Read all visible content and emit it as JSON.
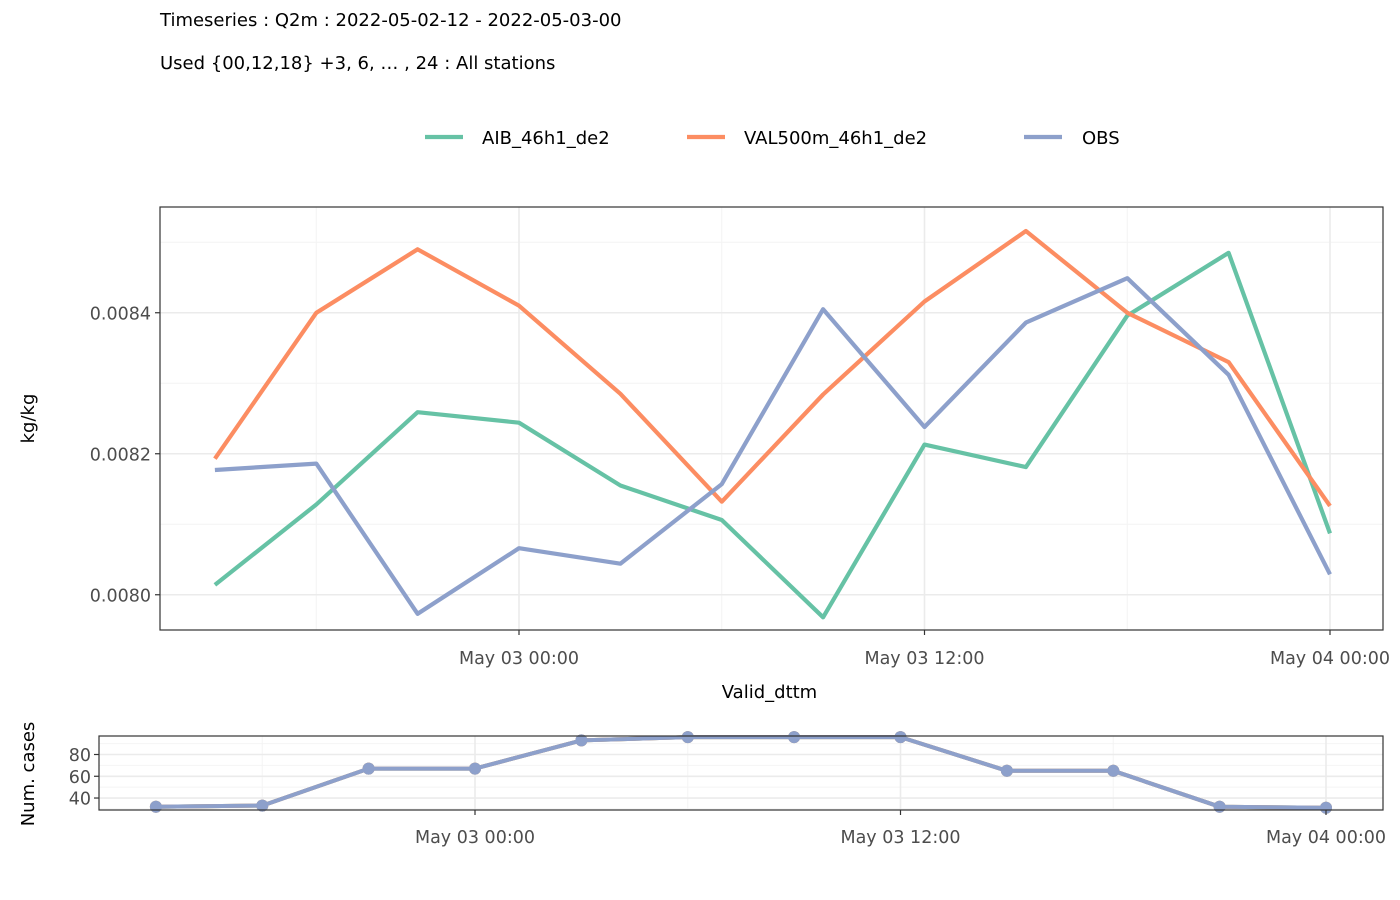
{
  "header": {
    "title_line1": "Timeseries : Q2m : 2022-05-02-12 - 2022-05-03-00",
    "title_line2": "Used {00,12,18} +3, 6, … , 24 : All stations"
  },
  "colors": {
    "AIB_46h1_de2": "#66c2a5",
    "VAL500m_46h1_de2": "#fc8d62",
    "OBS": "#8da0cb",
    "panel_border": "#333333",
    "grid_major": "#ebebeb",
    "grid_minor": "#f4f4f4"
  },
  "chart_data": [
    {
      "type": "line",
      "xlabel": "Valid_dttm",
      "ylabel": "kg/kg",
      "x": [
        "2022-05-02 15:00",
        "2022-05-02 18:00",
        "2022-05-02 21:00",
        "2022-05-03 00:00",
        "2022-05-03 03:00",
        "2022-05-03 06:00",
        "2022-05-03 09:00",
        "2022-05-03 12:00",
        "2022-05-03 15:00",
        "2022-05-03 18:00",
        "2022-05-03 21:00",
        "2022-05-04 00:00"
      ],
      "x_ticks": [
        "May 03 00:00",
        "May 03 12:00",
        "May 04 00:00"
      ],
      "ylim": [
        0.00795,
        0.00855
      ],
      "y_ticks": [
        "0.0080",
        "0.0082",
        "0.0084"
      ],
      "legend_position": "top",
      "grid": true,
      "series": [
        {
          "name": "AIB_46h1_de2",
          "values": [
            0.008014,
            0.008128,
            0.008259,
            0.008244,
            0.008155,
            0.008106,
            0.007968,
            0.008213,
            0.008181,
            0.008396,
            0.008485,
            0.008087
          ]
        },
        {
          "name": "VAL500m_46h1_de2",
          "values": [
            0.008193,
            0.0084,
            0.00849,
            0.00841,
            0.008285,
            0.008132,
            0.008284,
            0.008416,
            0.008516,
            0.0084,
            0.00833,
            0.008126
          ]
        },
        {
          "name": "OBS",
          "values": [
            0.008177,
            0.008186,
            0.007973,
            0.008066,
            0.008044,
            0.008157,
            0.008405,
            0.008238,
            0.008386,
            0.008449,
            0.008312,
            0.008029
          ]
        }
      ]
    },
    {
      "type": "line",
      "ylabel": "Num. cases",
      "x": [
        "2022-05-02 15:00",
        "2022-05-02 18:00",
        "2022-05-02 21:00",
        "2022-05-03 00:00",
        "2022-05-03 03:00",
        "2022-05-03 06:00",
        "2022-05-03 09:00",
        "2022-05-03 12:00",
        "2022-05-03 15:00",
        "2022-05-03 18:00",
        "2022-05-03 21:00",
        "2022-05-04 00:00"
      ],
      "x_ticks": [
        "May 03 00:00",
        "May 03 12:00",
        "May 04 00:00"
      ],
      "ylim": [
        29,
        97
      ],
      "y_ticks": [
        "40",
        "60",
        "80"
      ],
      "markers": true,
      "grid": true,
      "series": [
        {
          "name": "AIB_46h1_de2",
          "values": [
            32,
            33,
            67,
            67,
            93,
            96,
            96,
            96,
            65,
            65,
            32,
            31
          ]
        },
        {
          "name": "VAL500m_46h1_de2",
          "values": [
            32,
            33,
            67,
            67,
            93,
            96,
            96,
            96,
            65,
            65,
            32,
            31
          ]
        },
        {
          "name": "OBS",
          "values": [
            32,
            33,
            67,
            67,
            93,
            96,
            96,
            96,
            65,
            65,
            32,
            31
          ]
        }
      ]
    }
  ]
}
